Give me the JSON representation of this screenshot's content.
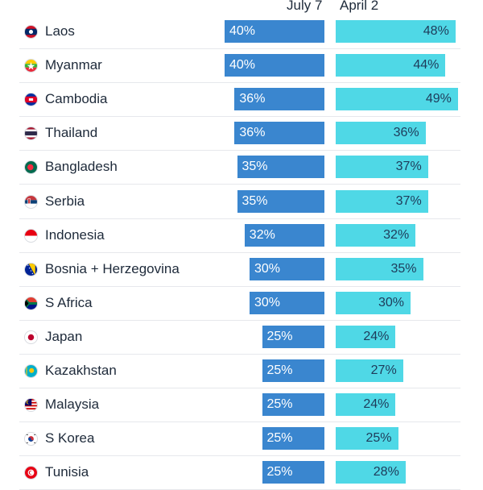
{
  "chart_data": {
    "type": "bar",
    "orientation": "horizontal",
    "series": [
      {
        "name": "July 7",
        "values": [
          40,
          40,
          36,
          36,
          35,
          35,
          32,
          30,
          30,
          25,
          25,
          25,
          25,
          25
        ],
        "color": "#3a86cf"
      },
      {
        "name": "April 2",
        "values": [
          48,
          44,
          49,
          36,
          37,
          37,
          32,
          35,
          30,
          24,
          27,
          24,
          25,
          28
        ],
        "color": "#4fd8e6"
      }
    ],
    "categories": [
      "Laos",
      "Myanmar",
      "Cambodia",
      "Thailand",
      "Bangladesh",
      "Serbia",
      "Indonesia",
      "Bosnia + Herzegovina",
      "S Africa",
      "Japan",
      "Kazakhstan",
      "Malaysia",
      "S Korea",
      "Tunisia"
    ],
    "value_suffix": "%",
    "grid": false,
    "legend": "top",
    "flag_icons": [
      "laos-flag-icon",
      "myanmar-flag-icon",
      "cambodia-flag-icon",
      "thailand-flag-icon",
      "bangladesh-flag-icon",
      "serbia-flag-icon",
      "indonesia-flag-icon",
      "bosnia-flag-icon",
      "south-africa-flag-icon",
      "japan-flag-icon",
      "kazakhstan-flag-icon",
      "malaysia-flag-icon",
      "south-korea-flag-icon",
      "tunisia-flag-icon"
    ]
  }
}
